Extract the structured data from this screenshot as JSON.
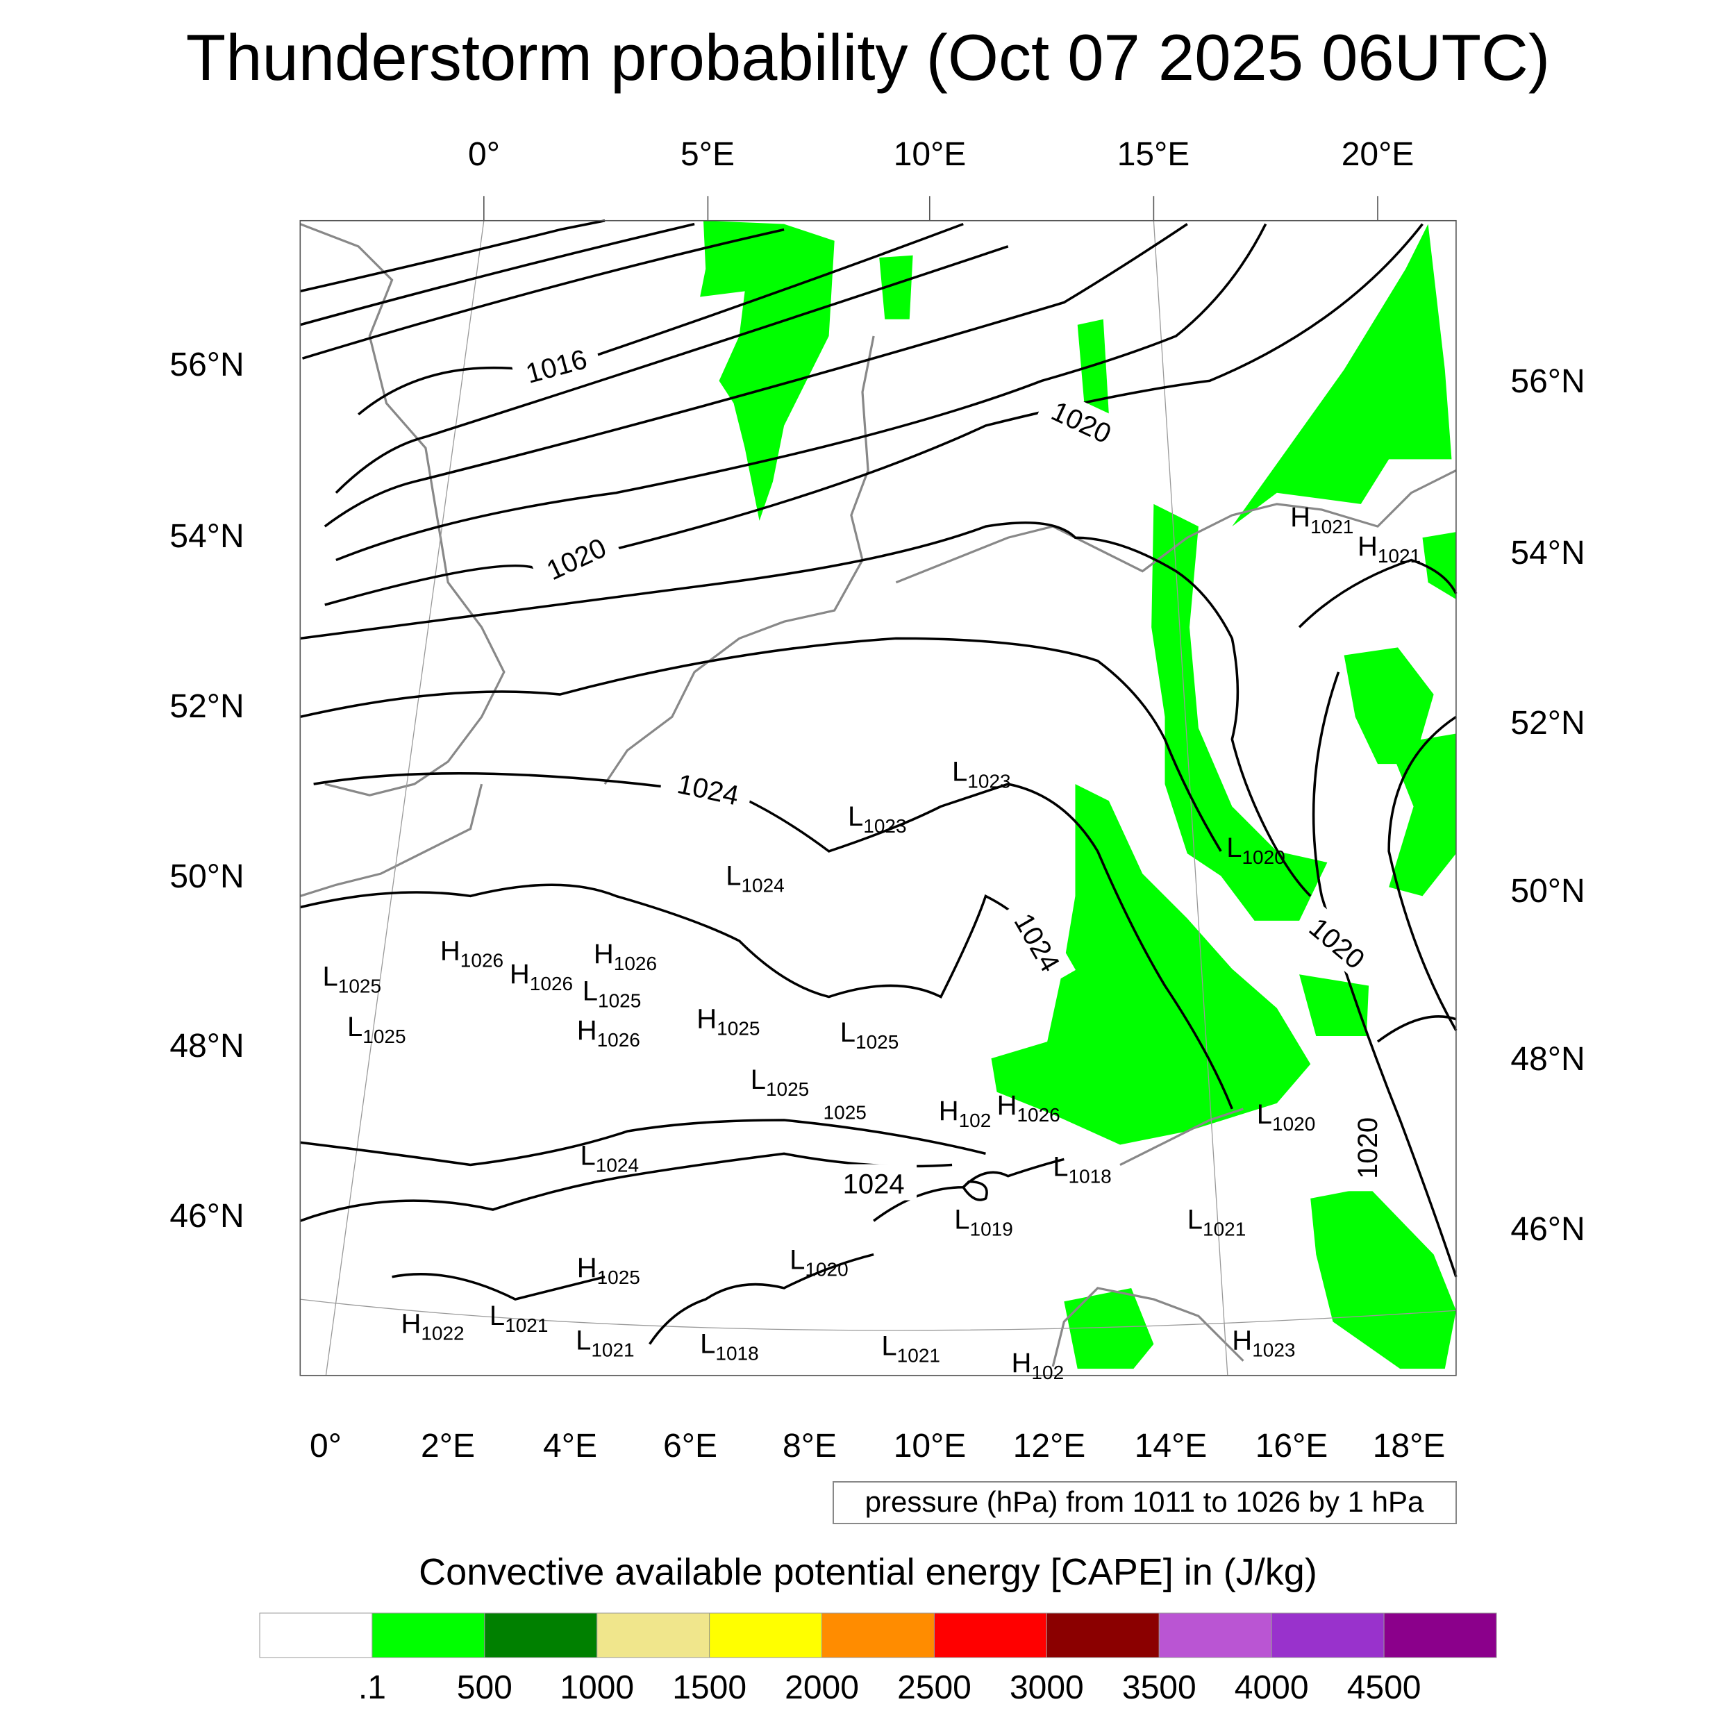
{
  "chart_data": {
    "type": "map",
    "title": "Thunderstorm probability (Oct 07 2025 06UTC)",
    "top_lon_ticks": [
      "0°",
      "5°E",
      "10°E",
      "15°E",
      "20°E"
    ],
    "left_lat_ticks": [
      "56°N",
      "54°N",
      "52°N",
      "50°N",
      "48°N",
      "46°N"
    ],
    "right_lat_ticks": [
      "56°N",
      "54°N",
      "52°N",
      "50°N",
      "48°N",
      "46°N"
    ],
    "bottom_lon_ticks": [
      "0°",
      "2°E",
      "4°E",
      "6°E",
      "8°E",
      "10°E",
      "12°E",
      "14°E",
      "16°E",
      "18°E"
    ],
    "contour_info": "pressure (hPa) from 1011 to 1026 by 1 hPa",
    "contour_range": [
      1011,
      1026
    ],
    "contour_step": 1,
    "contour_labels": [
      "1016",
      "1020",
      "1024",
      "1024",
      "1020",
      "1020",
      "1020",
      "1024"
    ],
    "pressure_centers": [
      {
        "letter": "L",
        "value": "1025"
      },
      {
        "letter": "L",
        "value": "1025"
      },
      {
        "letter": "H",
        "value": "1026"
      },
      {
        "letter": "H",
        "value": "1026"
      },
      {
        "letter": "H",
        "value": "1026"
      },
      {
        "letter": "L",
        "value": "1025"
      },
      {
        "letter": "H",
        "value": "1026"
      },
      {
        "letter": "H",
        "value": "1025"
      },
      {
        "letter": "L",
        "value": "1025"
      },
      {
        "letter": "L",
        "value": "1025"
      },
      {
        "letter": "",
        "value": "1025"
      },
      {
        "letter": "H",
        "value": "102"
      },
      {
        "letter": "H",
        "value": "1026"
      },
      {
        "letter": "L",
        "value": "1024"
      },
      {
        "letter": "L",
        "value": "1023"
      },
      {
        "letter": "L",
        "value": "1023"
      },
      {
        "letter": "L",
        "value": "1020"
      },
      {
        "letter": "H",
        "value": "1021"
      },
      {
        "letter": "H",
        "value": "1021"
      },
      {
        "letter": "L",
        "value": "1024"
      },
      {
        "letter": "L",
        "value": "1018"
      },
      {
        "letter": "L",
        "value": "1019"
      },
      {
        "letter": "L",
        "value": "1021"
      },
      {
        "letter": "L",
        "value": "1020"
      },
      {
        "letter": "H",
        "value": "1025"
      },
      {
        "letter": "L",
        "value": "1020"
      },
      {
        "letter": "H",
        "value": "1022"
      },
      {
        "letter": "L",
        "value": "1021"
      },
      {
        "letter": "L",
        "value": "1021"
      },
      {
        "letter": "L",
        "value": "1018"
      },
      {
        "letter": "L",
        "value": "1021"
      },
      {
        "letter": "H",
        "value": "1023"
      },
      {
        "letter": "H",
        "value": "102"
      }
    ],
    "colorbar": {
      "title": "Convective available potential energy [CAPE] in (J/kg)",
      "levels": [
        ".1",
        "500",
        "1000",
        "1500",
        "2000",
        "2500",
        "3000",
        "3500",
        "4000",
        "4500"
      ],
      "colors": [
        "#ffffff",
        "#00ff00",
        "#008000",
        "#f0e68c",
        "#ffff00",
        "#ff8c00",
        "#ff0000",
        "#8b0000",
        "#ba55d3",
        "#9932cc",
        "#8b008b"
      ]
    },
    "field_color": "#00ff00"
  }
}
